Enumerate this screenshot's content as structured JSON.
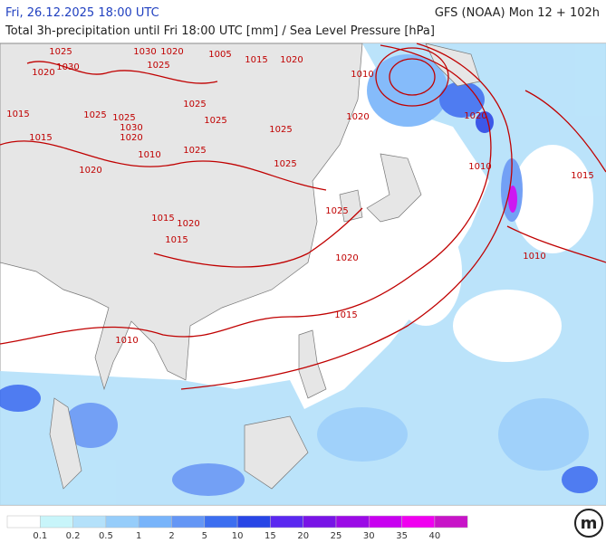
{
  "header": {
    "left": "Fri, 26.12.2025 18:00 UTC",
    "right": "GFS (NOAA) Mon 12 + 102h",
    "subtitle": "Total 3h-precipitation until Fri 18:00 UTC [mm] / Sea Level Pressure [hPa]"
  },
  "isobar_labels": [
    "1025",
    "1030",
    "1020",
    "1025",
    "1005",
    "1015",
    "1020",
    "1020",
    "1030",
    "1025",
    "1025",
    "1010",
    "1015",
    "1025",
    "1025",
    "1020",
    "1030",
    "1025",
    "1015",
    "1020",
    "1010",
    "1025",
    "1025",
    "1020",
    "1020",
    "1010",
    "1015",
    "1025",
    "1015",
    "1020",
    "1015",
    "1020",
    "1010",
    "1015",
    "1010"
  ],
  "legend": {
    "labels": [
      "0.1",
      "0.2",
      "0.5",
      "1",
      "2",
      "5",
      "10",
      "15",
      "20",
      "25",
      "30",
      "35",
      "40"
    ],
    "colors": [
      "#ffffff",
      "#c8f5fa",
      "#b4e1fa",
      "#96cdfa",
      "#78b4fa",
      "#6496f5",
      "#3c6ef0",
      "#2846e6",
      "#5a28f0",
      "#7814e6",
      "#9b0ae6",
      "#c800f0",
      "#f000f0",
      "#c814c8"
    ]
  },
  "logo_text": "m"
}
